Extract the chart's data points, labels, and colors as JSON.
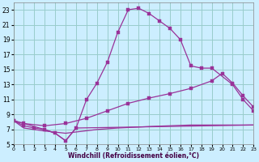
{
  "xlabel": "Windchill (Refroidissement éolien,°C)",
  "bg_color": "#cceeff",
  "grid_color": "#99cccc",
  "line_color": "#993399",
  "xlim": [
    0,
    23
  ],
  "ylim": [
    5,
    24
  ],
  "xticks": [
    0,
    1,
    2,
    3,
    4,
    5,
    6,
    7,
    8,
    9,
    10,
    11,
    12,
    13,
    14,
    15,
    16,
    17,
    18,
    19,
    20,
    21,
    22,
    23
  ],
  "yticks": [
    5,
    7,
    9,
    11,
    13,
    15,
    17,
    19,
    21,
    23
  ],
  "curve1_x": [
    0,
    1,
    2,
    3,
    4,
    5,
    6,
    7,
    8,
    9,
    10,
    11,
    12,
    13,
    14,
    15,
    16,
    17,
    18,
    19,
    21,
    22,
    23
  ],
  "curve1_y": [
    8.2,
    7.5,
    7.2,
    7.0,
    6.5,
    5.5,
    7.2,
    11.0,
    13.2,
    16.0,
    20.0,
    23.0,
    23.2,
    22.5,
    21.5,
    20.5,
    19.0,
    15.5,
    15.2,
    15.2,
    13.0,
    11.0,
    9.5
  ],
  "curve2_x": [
    0,
    1,
    3,
    5,
    7,
    9,
    11,
    13,
    15,
    17,
    19,
    20,
    21,
    22,
    23
  ],
  "curve2_y": [
    8.2,
    7.8,
    7.5,
    7.8,
    8.5,
    9.5,
    10.5,
    11.2,
    11.8,
    12.5,
    13.5,
    14.5,
    13.2,
    11.5,
    10.0
  ],
  "curve3_x": [
    0,
    1,
    2,
    3,
    5,
    8,
    10,
    13,
    15,
    17,
    19,
    20,
    21,
    22,
    23
  ],
  "curve3_y": [
    8.2,
    7.2,
    7.0,
    6.8,
    6.5,
    7.0,
    7.2,
    7.4,
    7.5,
    7.6,
    7.6,
    7.6,
    7.6,
    7.6,
    7.6
  ],
  "curve4_x": [
    0,
    3,
    4,
    5,
    6,
    23
  ],
  "curve4_y": [
    8.2,
    7.0,
    6.5,
    5.5,
    7.2,
    7.6
  ]
}
